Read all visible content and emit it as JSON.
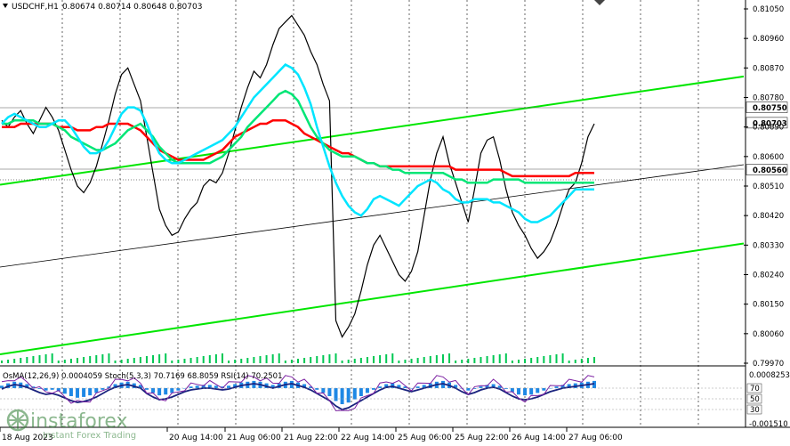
{
  "window": {
    "symbol_label": "USDCHF,H1",
    "quote": "0.80674 0.80714 0.80648 0.80703"
  },
  "indicator_label": "OsMA(12,26,9) 0.0004059 Stoch(5,3,3) 70.7169 68.8059 RSI(14) 70.2501",
  "watermark": {
    "brand": "instaforex",
    "tagline": "Instant Forex Trading"
  },
  "chart_data": [
    {
      "type": "line",
      "title": "USDCHF,H1",
      "price_axis_ticks": [
        "0.81050",
        "0.80960",
        "0.80870",
        "0.80780",
        "0.80690",
        "0.80600",
        "0.80510",
        "0.80420",
        "0.80330",
        "0.80240",
        "0.80150",
        "0.80060",
        "0.79970"
      ],
      "ylim": [
        0.7997,
        0.8105
      ],
      "x_labels": [
        "18 Aug 2023",
        "20 Aug 14:00",
        "21 Aug 06:00",
        "21 Aug 22:00",
        "22 Aug 14:00",
        "25 Aug 06:00",
        "25 Aug 22:00",
        "26 Aug 14:00",
        "27 Aug 06:00"
      ],
      "highlighted_prices": [
        {
          "value": "0.80750",
          "color": "#FFFFFF",
          "text_color": "#000000"
        },
        {
          "value": "0.80703",
          "color": "#FFFFFF",
          "text_color": "#000000"
        },
        {
          "value": "0.80560",
          "color": "#FFFFFF",
          "text_color": "#000000"
        }
      ],
      "series": [
        {
          "color": "#000000",
          "values": [
            0.8071,
            0.8069,
            0.8072,
            0.8074,
            0.807,
            0.8067,
            0.8071,
            0.8075,
            0.8072,
            0.8068,
            0.8062,
            0.8056,
            0.8051,
            0.8049,
            0.8052,
            0.8057,
            0.8064,
            0.8071,
            0.8079,
            0.8085,
            0.8087,
            0.8082,
            0.8077,
            0.8066,
            0.8055,
            0.8044,
            0.8039,
            0.8036,
            0.8037,
            0.8041,
            0.8044,
            0.8046,
            0.8051,
            0.8053,
            0.8052,
            0.8055,
            0.8061,
            0.8068,
            0.8075,
            0.8081,
            0.8086,
            0.8084,
            0.8088,
            0.8094,
            0.8099,
            0.8101,
            0.8103,
            0.81,
            0.8097,
            0.8092,
            0.8088,
            0.8082,
            0.8077,
            0.801,
            0.8005,
            0.8008,
            0.8012,
            0.8019,
            0.8027,
            0.8033,
            0.8036,
            0.8032,
            0.8028,
            0.8024,
            0.8022,
            0.8025,
            0.8031,
            0.8042,
            0.8053,
            0.8061,
            0.8066,
            0.8058,
            0.8052,
            0.8046,
            0.804,
            0.805,
            0.8061,
            0.8065,
            0.8066,
            0.8059,
            0.805,
            0.8043,
            0.8039,
            0.8036,
            0.8032,
            0.8029,
            0.8031,
            0.8034,
            0.8039,
            0.8045,
            0.805,
            0.8052,
            0.8058,
            0.8066,
            0.807
          ]
        },
        {
          "color": "#FF0000",
          "values": [
            0.8069,
            0.8069,
            0.8069,
            0.807,
            0.807,
            0.807,
            0.807,
            0.807,
            0.807,
            0.8069,
            0.8069,
            0.8069,
            0.8068,
            0.8068,
            0.8068,
            0.8069,
            0.8069,
            0.807,
            0.807,
            0.807,
            0.807,
            0.8069,
            0.8068,
            0.8066,
            0.8064,
            0.8062,
            0.8061,
            0.806,
            0.8059,
            0.8059,
            0.8059,
            0.8059,
            0.8059,
            0.806,
            0.8061,
            0.8062,
            0.8064,
            0.8066,
            0.8067,
            0.8068,
            0.8069,
            0.807,
            0.807,
            0.8071,
            0.8071,
            0.8071,
            0.807,
            0.8069,
            0.8067,
            0.8066,
            0.8065,
            0.8064,
            0.8063,
            0.8062,
            0.8061,
            0.8061,
            0.806,
            0.8059,
            0.8058,
            0.8058,
            0.8057,
            0.8057,
            0.8057,
            0.8057,
            0.8057,
            0.8057,
            0.8057,
            0.8057,
            0.8057,
            0.8057,
            0.8057,
            0.8057,
            0.8056,
            0.8056,
            0.8056,
            0.8056,
            0.8056,
            0.8056,
            0.8056,
            0.8056,
            0.8055,
            0.8054,
            0.8054,
            0.8054,
            0.8054,
            0.8054,
            0.8054,
            0.8054,
            0.8054,
            0.8054,
            0.8054,
            0.8055,
            0.8055,
            0.8055,
            0.8055
          ]
        },
        {
          "color": "#00E676",
          "values": [
            0.807,
            0.807,
            0.8071,
            0.8071,
            0.8071,
            0.8071,
            0.807,
            0.807,
            0.807,
            0.8069,
            0.8068,
            0.8066,
            0.8065,
            0.8064,
            0.8063,
            0.8062,
            0.8062,
            0.8063,
            0.8064,
            0.8066,
            0.8068,
            0.8069,
            0.807,
            0.8068,
            0.8066,
            0.8063,
            0.8061,
            0.8059,
            0.8058,
            0.8058,
            0.8058,
            0.8058,
            0.8058,
            0.8058,
            0.8059,
            0.806,
            0.8062,
            0.8064,
            0.8066,
            0.8069,
            0.8071,
            0.8073,
            0.8075,
            0.8077,
            0.8079,
            0.808,
            0.8079,
            0.8077,
            0.8073,
            0.8069,
            0.8066,
            0.8064,
            0.8062,
            0.8061,
            0.806,
            0.806,
            0.806,
            0.8059,
            0.8058,
            0.8058,
            0.8057,
            0.8057,
            0.8056,
            0.8056,
            0.8055,
            0.8055,
            0.8055,
            0.8055,
            0.8055,
            0.8055,
            0.8055,
            0.8054,
            0.8053,
            0.8053,
            0.8052,
            0.8052,
            0.8052,
            0.8052,
            0.8053,
            0.8053,
            0.8053,
            0.8053,
            0.8053,
            0.8052,
            0.8052,
            0.8052,
            0.8052,
            0.8052,
            0.8052,
            0.8052,
            0.8052,
            0.8052,
            0.8052,
            0.8052,
            0.8052
          ]
        },
        {
          "color": "#00E5FF",
          "values": [
            0.807,
            0.8072,
            0.8073,
            0.8072,
            0.8071,
            0.807,
            0.8069,
            0.8069,
            0.807,
            0.8071,
            0.8071,
            0.8069,
            0.8066,
            0.8063,
            0.8061,
            0.8061,
            0.8062,
            0.8065,
            0.8069,
            0.8073,
            0.8075,
            0.8075,
            0.8074,
            0.807,
            0.8065,
            0.8061,
            0.8059,
            0.8058,
            0.8058,
            0.8059,
            0.806,
            0.8061,
            0.8062,
            0.8063,
            0.8064,
            0.8065,
            0.8067,
            0.8069,
            0.8072,
            0.8075,
            0.8078,
            0.808,
            0.8082,
            0.8084,
            0.8086,
            0.8088,
            0.8087,
            0.8085,
            0.8081,
            0.8076,
            0.8069,
            0.8063,
            0.8057,
            0.8052,
            0.8048,
            0.8045,
            0.8043,
            0.8042,
            0.8044,
            0.8047,
            0.8048,
            0.8047,
            0.8046,
            0.8045,
            0.8047,
            0.8049,
            0.8051,
            0.8052,
            0.8053,
            0.8052,
            0.805,
            0.8049,
            0.8047,
            0.8046,
            0.8046,
            0.8047,
            0.8047,
            0.8047,
            0.8046,
            0.8046,
            0.8045,
            0.8044,
            0.8043,
            0.8041,
            0.804,
            0.804,
            0.8041,
            0.8042,
            0.8044,
            0.8046,
            0.8048,
            0.805,
            0.805,
            0.805,
            0.805
          ]
        }
      ]
    },
    {
      "type": "bar",
      "title": "OsMA(12,26,9) Stoch(5,3,3) RSI(14)",
      "price_axis_ticks": [
        "0.0008253",
        "-0.001510"
      ],
      "stoch_levels": [
        "70",
        "50",
        "30"
      ],
      "series": [
        {
          "color": "#1E88E5",
          "values": [
            0.3,
            0.6,
            0.8,
            0.7,
            0.5,
            0.2,
            -0.1,
            -0.3,
            -0.2,
            -0.4,
            -0.7,
            -1.0,
            -1.2,
            -1.1,
            -0.9,
            -0.6,
            -0.2,
            0.2,
            0.5,
            0.7,
            0.8,
            0.6,
            0.4,
            -0.2,
            -0.6,
            -0.9,
            -0.8,
            -0.6,
            -0.3,
            0.0,
            0.2,
            0.3,
            0.4,
            0.4,
            0.3,
            0.2,
            0.3,
            0.5,
            0.7,
            0.8,
            0.9,
            0.8,
            0.6,
            0.4,
            0.6,
            0.8,
            0.9,
            0.7,
            0.5,
            0.2,
            -0.2,
            -0.6,
            -1.0,
            -1.6,
            -2.0,
            -1.8,
            -1.4,
            -1.0,
            -0.6,
            -0.2,
            0.2,
            0.5,
            0.6,
            0.4,
            0.2,
            0.0,
            0.2,
            0.4,
            0.6,
            0.8,
            0.9,
            0.7,
            0.4,
            0.0,
            -0.3,
            -0.1,
            0.2,
            0.4,
            0.5,
            0.3,
            -0.1,
            -0.5,
            -0.8,
            -0.9,
            -0.8,
            -0.6,
            -0.3,
            0.0,
            0.2,
            0.4,
            0.5,
            0.6,
            0.7,
            0.8,
            0.9
          ]
        }
      ]
    }
  ],
  "colors": {
    "channel": "#00E600",
    "badge_bg": "#FFFFFF",
    "badge_fg": "#000000"
  }
}
